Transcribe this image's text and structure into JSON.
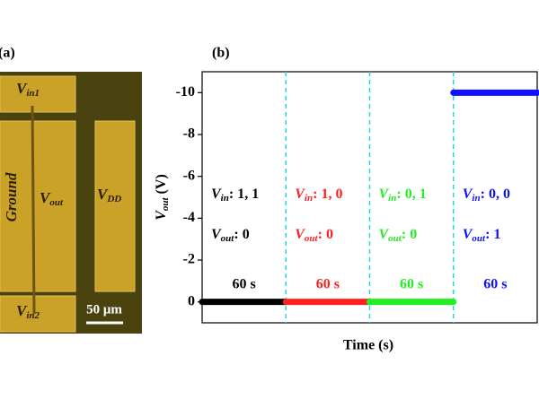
{
  "panel_a": {
    "label": "(a)",
    "pads": {
      "vin1": {
        "symbol": "V",
        "subscript": "in1"
      },
      "vout": {
        "symbol": "V",
        "subscript": "out"
      },
      "vdd": {
        "symbol": "V",
        "subscript": "DD"
      },
      "ground": "Ground",
      "vin2": {
        "symbol": "V",
        "subscript": "in2"
      }
    },
    "scale_bar": "50 μm"
  },
  "chart_data": {
    "type": "line",
    "panel_label": "(b)",
    "x_label": "Time (s)",
    "y_label": {
      "symbol": "V",
      "subscript": "out",
      "unit": " (V)"
    },
    "xlim": [
      0,
      240
    ],
    "ylim": [
      1,
      -11
    ],
    "yticks": [
      0,
      -2,
      -4,
      -6,
      -8,
      -10
    ],
    "dividers": [
      60,
      120,
      180
    ],
    "series": [
      {
        "color": "#000000",
        "x": [
          0,
          60
        ],
        "values": [
          0,
          0
        ]
      },
      {
        "color": "#ff2020",
        "x": [
          60,
          120
        ],
        "values": [
          0,
          0
        ]
      },
      {
        "color": "#22ee22",
        "x": [
          120,
          180
        ],
        "values": [
          0,
          0
        ]
      },
      {
        "color": "#1010ff",
        "x": [
          180,
          240
        ],
        "values": [
          -10,
          -10
        ]
      }
    ],
    "symbol": "V",
    "input_subscript": "in",
    "output_subscript": "out",
    "annotations": [
      {
        "input": ": 1, 1",
        "output": ": 0",
        "duration": "60 s",
        "color": "#000000"
      },
      {
        "input": ": 1, 0",
        "output": ": 0",
        "duration": "60 s",
        "color": "#ff2020"
      },
      {
        "input": ": 0, 1",
        "output": ": 0",
        "duration": "60 s",
        "color": "#22ee22"
      },
      {
        "input": ": 0, 0",
        "output": ": 1",
        "duration": "60 s",
        "color": "#1010ff"
      }
    ]
  }
}
